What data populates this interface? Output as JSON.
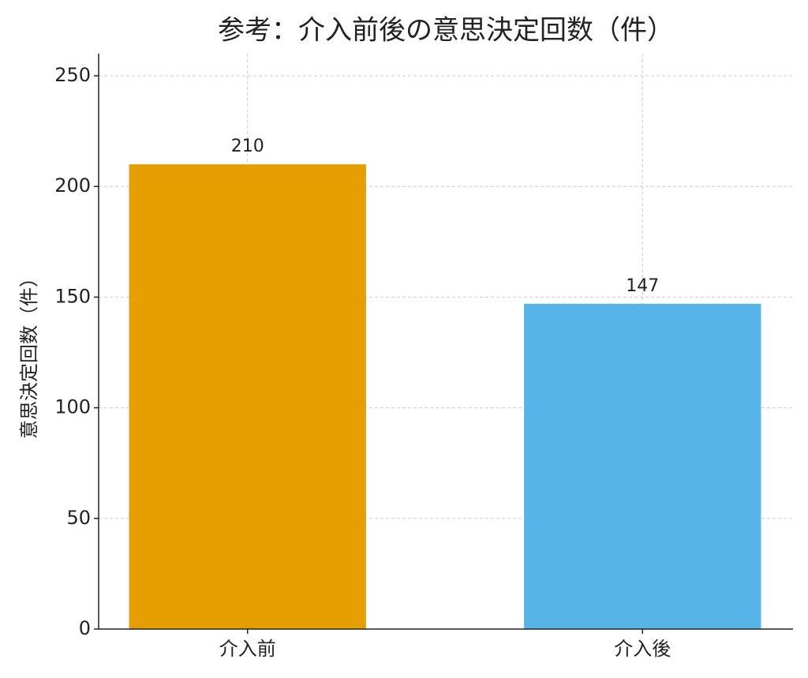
{
  "chart_data": {
    "type": "bar",
    "title": "参考：介入前後の意思決定回数（件）",
    "ylabel": "意思決定回数（件）",
    "categories": [
      "介入前",
      "介入後"
    ],
    "values": [
      210,
      147
    ],
    "colors": [
      "#E69F00",
      "#56B4E9"
    ],
    "ylim": [
      0,
      260
    ],
    "yticks": [
      0,
      50,
      100,
      150,
      200,
      250
    ],
    "grid": true
  }
}
